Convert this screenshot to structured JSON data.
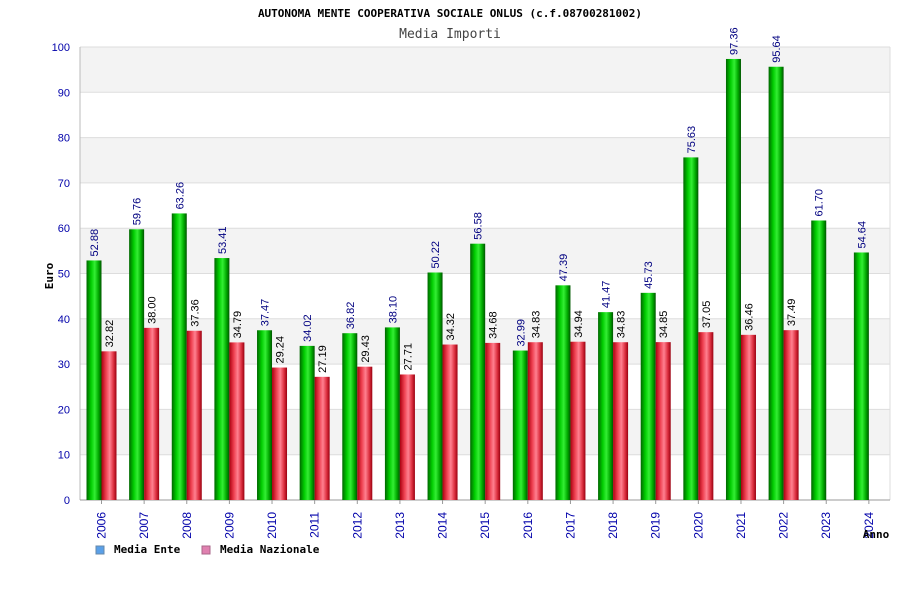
{
  "chart_data": {
    "type": "bar",
    "title": "AUTONOMA MENTE COOPERATIVA SOCIALE ONLUS (c.f.08700281002)",
    "subtitle": "Media Importi",
    "ylabel": "Euro",
    "xlabel": "Anno",
    "ylim": [
      0,
      100
    ],
    "yticks": [
      0,
      10,
      20,
      30,
      40,
      50,
      60,
      70,
      80,
      90,
      100
    ],
    "grid": true,
    "legend_position": "bottom-left",
    "categories": [
      "2006",
      "2007",
      "2008",
      "2009",
      "2010",
      "2011",
      "2012",
      "2013",
      "2014",
      "2015",
      "2016",
      "2017",
      "2018",
      "2019",
      "2020",
      "2021",
      "2022",
      "2023",
      "2024"
    ],
    "series": [
      {
        "name": "Media Ente",
        "color": "#00b000",
        "values": [
          52.88,
          59.76,
          63.26,
          53.41,
          37.47,
          34.02,
          36.82,
          38.1,
          50.22,
          56.58,
          32.99,
          47.39,
          41.47,
          45.73,
          75.63,
          97.36,
          95.64,
          61.7,
          54.64
        ],
        "labels": [
          "52.88",
          "59.76",
          "63.26",
          "53.41",
          "37.47",
          "34.02",
          "36.82",
          "38.10",
          "50.22",
          "56.58",
          "32.99",
          "47.39",
          "41.47",
          "45.73",
          "75.63",
          "97.36",
          "95.64",
          "61.70",
          "54.64"
        ]
      },
      {
        "name": "Media Nazionale",
        "color": "#e03040",
        "values": [
          32.82,
          38.0,
          37.36,
          34.79,
          29.24,
          27.19,
          29.43,
          27.71,
          34.32,
          34.68,
          34.83,
          34.94,
          34.83,
          34.85,
          37.05,
          36.46,
          37.49,
          null,
          null
        ],
        "labels": [
          "32.82",
          "38.00",
          "37.36",
          "34.79",
          "29.24",
          "27.19",
          "29.43",
          "27.71",
          "34.32",
          "34.68",
          "34.83",
          "34.94",
          "34.83",
          "34.85",
          "37.05",
          "36.46",
          "37.49",
          "",
          ""
        ]
      }
    ]
  },
  "legend": {
    "items": [
      {
        "label": "Media Ente",
        "color": "#5aa0e8"
      },
      {
        "label": "Media Nazionale",
        "color": "#e080b0"
      }
    ]
  },
  "colors": {
    "axis_text": "#0000aa",
    "value_text": "#000080",
    "band": "#f3f3f3",
    "grid": "#dddddd"
  }
}
